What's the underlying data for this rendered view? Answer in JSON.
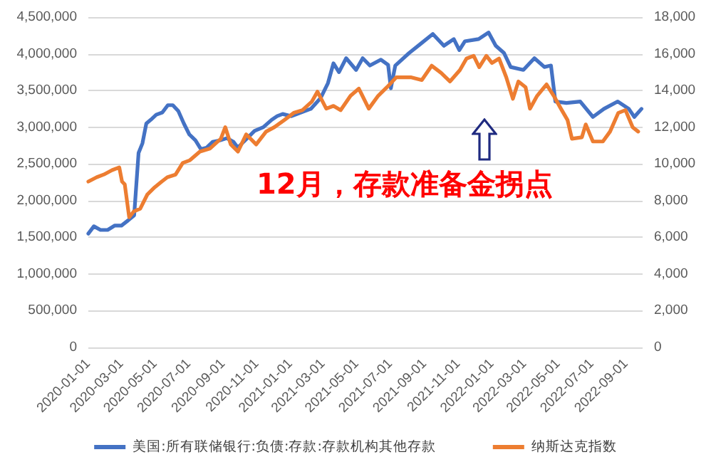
{
  "chart_data": {
    "type": "line",
    "annotations": [
      "12月，存款准备金拐点"
    ],
    "xlim": [
      "2020-01-01",
      "2022-10-01"
    ],
    "xticks": [
      "2020-01-01",
      "2020-03-01",
      "2020-05-01",
      "2020-07-01",
      "2020-09-01",
      "2020-11-01",
      "2021-01-01",
      "2021-03-01",
      "2021-05-01",
      "2021-07-01",
      "2021-09-01",
      "2021-11-01",
      "2022-01-01",
      "2022-03-01",
      "2022-05-01",
      "2022-07-01",
      "2022-09-01"
    ],
    "ylim": [
      0,
      4500000
    ],
    "yticks": [
      0,
      {
        "value": 500000,
        "label": "500,000"
      },
      {
        "value": 1000000,
        "label": "1,000,000"
      },
      {
        "value": 1500000,
        "label": "1,500,000"
      },
      {
        "value": 2000000,
        "label": "2,000,000"
      },
      {
        "value": 2500000,
        "label": "2,500,000"
      },
      {
        "value": 3000000,
        "label": "3,000,000"
      },
      {
        "value": 3500000,
        "label": "3,500,000"
      },
      {
        "value": 4000000,
        "label": "4,000,000"
      },
      {
        "value": 4500000,
        "label": "4,500,000"
      }
    ],
    "y2lim": [
      0,
      18000
    ],
    "y2ticks": [
      0,
      {
        "value": 2000,
        "label": "2,000"
      },
      {
        "value": 4000,
        "label": "4,000"
      },
      {
        "value": 6000,
        "label": "6,000"
      },
      {
        "value": 8000,
        "label": "8,000"
      },
      {
        "value": 10000,
        "label": "10,000"
      },
      {
        "value": 12000,
        "label": "12,000"
      },
      {
        "value": 14000,
        "label": "14,000"
      },
      {
        "value": 16000,
        "label": "16,000"
      },
      {
        "value": 18000,
        "label": "18,000"
      }
    ],
    "grid": "y",
    "legend": "bottom",
    "marker": "none",
    "line_style": "solid",
    "series": [
      {
        "name": "美国:所有联储银行:负债:存款:存款机构其他存款",
        "color": "#4472c4",
        "x": [
          "2020-01-01",
          "2020-01-11",
          "2020-01-23",
          "2020-02-05",
          "2020-02-18",
          "2020-03-01",
          "2020-03-13",
          "2020-03-24",
          "2020-04-01",
          "2020-04-08",
          "2020-04-15",
          "2020-04-23",
          "2020-05-03",
          "2020-05-14",
          "2020-05-24",
          "2020-06-02",
          "2020-06-12",
          "2020-06-22",
          "2020-07-02",
          "2020-07-13",
          "2020-07-23",
          "2020-08-02",
          "2020-08-13",
          "2020-08-26",
          "2020-09-08",
          "2020-09-20",
          "2020-09-28",
          "2020-10-08",
          "2020-10-28",
          "2020-11-13",
          "2020-11-28",
          "2020-12-08",
          "2020-12-18",
          "2021-01-03",
          "2021-01-20",
          "2021-02-07",
          "2021-02-25",
          "2021-03-10",
          "2021-03-20",
          "2021-03-30",
          "2021-04-12",
          "2021-04-30",
          "2021-05-12",
          "2021-05-25",
          "2021-06-14",
          "2021-06-27",
          "2021-07-02",
          "2021-07-10",
          "2021-08-04",
          "2021-08-24",
          "2021-09-16",
          "2021-10-06",
          "2021-10-24",
          "2021-11-03",
          "2021-11-13",
          "2021-12-08",
          "2021-12-26",
          "2022-01-08",
          "2022-01-23",
          "2022-02-04",
          "2022-02-27",
          "2022-03-19",
          "2022-04-06",
          "2022-04-18",
          "2022-04-26",
          "2022-05-16",
          "2022-06-10",
          "2022-07-03",
          "2022-07-23",
          "2022-08-17",
          "2022-09-06",
          "2022-09-16",
          "2022-09-29"
        ],
        "values": [
          1550000,
          1650000,
          1600000,
          1600000,
          1660000,
          1660000,
          1730000,
          1800000,
          2650000,
          2780000,
          3050000,
          3100000,
          3170000,
          3200000,
          3300000,
          3300000,
          3220000,
          3050000,
          2900000,
          2820000,
          2700000,
          2720000,
          2800000,
          2820000,
          2850000,
          2800000,
          2720000,
          2800000,
          2950000,
          3000000,
          3100000,
          3150000,
          3180000,
          3150000,
          3200000,
          3250000,
          3400000,
          3600000,
          3870000,
          3750000,
          3940000,
          3780000,
          3940000,
          3840000,
          3920000,
          3850000,
          3530000,
          3840000,
          4010000,
          4130000,
          4270000,
          4110000,
          4200000,
          4050000,
          4170000,
          4200000,
          4290000,
          4110000,
          4010000,
          3820000,
          3780000,
          3940000,
          3820000,
          3840000,
          3350000,
          3330000,
          3350000,
          3140000,
          3250000,
          3350000,
          3250000,
          3140000,
          3250000
        ]
      },
      {
        "name": "纳斯达克指数",
        "color": "#ed7d31",
        "axis": "y2",
        "x": [
          "2020-01-01",
          "2020-01-16",
          "2020-01-29",
          "2020-02-13",
          "2020-02-26",
          "2020-03-02",
          "2020-03-07",
          "2020-03-15",
          "2020-03-23",
          "2020-04-04",
          "2020-04-17",
          "2020-04-30",
          "2020-05-13",
          "2020-05-23",
          "2020-06-07",
          "2020-06-20",
          "2020-07-03",
          "2020-07-21",
          "2020-08-08",
          "2020-08-28",
          "2020-09-05",
          "2020-09-15",
          "2020-09-28",
          "2020-10-13",
          "2020-10-31",
          "2020-11-18",
          "2020-12-03",
          "2020-12-21",
          "2021-01-07",
          "2021-01-23",
          "2021-02-09",
          "2021-02-19",
          "2021-03-07",
          "2021-03-20",
          "2021-04-02",
          "2021-04-20",
          "2021-05-05",
          "2021-05-23",
          "2021-06-09",
          "2021-06-25",
          "2021-07-12",
          "2021-08-07",
          "2021-08-27",
          "2021-09-14",
          "2021-10-01",
          "2021-10-17",
          "2021-11-04",
          "2021-11-16",
          "2021-11-29",
          "2021-12-09",
          "2021-12-22",
          "2022-01-01",
          "2022-01-14",
          "2022-01-27",
          "2022-02-08",
          "2022-02-18",
          "2022-03-03",
          "2022-03-11",
          "2022-03-24",
          "2022-04-10",
          "2022-04-23",
          "2022-05-06",
          "2022-05-18",
          "2022-05-26",
          "2022-06-13",
          "2022-06-20",
          "2022-07-03",
          "2022-07-21",
          "2022-08-03",
          "2022-08-18",
          "2022-08-31",
          "2022-09-13",
          "2022-09-23"
        ],
        "values": [
          9040,
          9270,
          9420,
          9660,
          9810,
          9040,
          8880,
          7090,
          7400,
          7560,
          8340,
          8720,
          9040,
          9270,
          9420,
          10050,
          10200,
          10670,
          10830,
          11370,
          12000,
          11060,
          10670,
          11610,
          11060,
          11760,
          12000,
          12390,
          12780,
          12930,
          13400,
          13940,
          13010,
          13160,
          12930,
          13710,
          14100,
          13010,
          13710,
          14180,
          14720,
          14720,
          14570,
          15350,
          14960,
          14490,
          15110,
          15740,
          15890,
          15270,
          15890,
          15500,
          15740,
          14720,
          13550,
          14490,
          14180,
          13010,
          13710,
          14330,
          13710,
          13010,
          12390,
          11370,
          11450,
          12150,
          11220,
          11220,
          11760,
          12780,
          12930,
          12000,
          11760
        ]
      }
    ]
  }
}
